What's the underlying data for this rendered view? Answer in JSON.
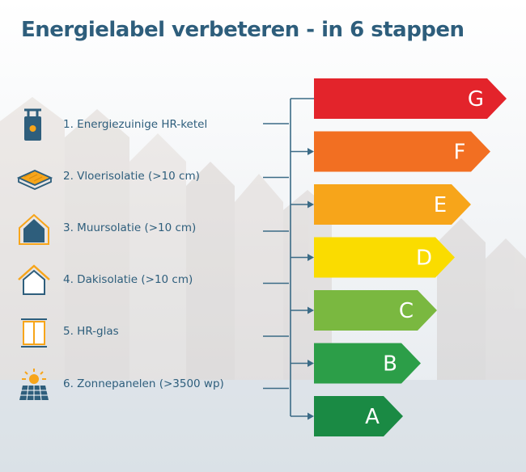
{
  "title": "Energielabel verbeteren - in 6 stappen",
  "steps": [
    {
      "label": "1. Energiezuinige HR-ketel",
      "icon": "boiler-icon"
    },
    {
      "label": "2. Vloerisolatie (>10 cm)",
      "icon": "floor-insulation-icon"
    },
    {
      "label": "3. Muursolatie  (>10 cm)",
      "icon": "house-wall-icon"
    },
    {
      "label": "4. Dakisolatie  (>10 cm)",
      "icon": "house-roof-icon"
    },
    {
      "label": "5. HR-glas",
      "icon": "window-icon"
    },
    {
      "label": "6. Zonnepanelen (>3500 wp)",
      "icon": "solar-panel-icon"
    }
  ],
  "labels": [
    {
      "letter": "G",
      "color": "#e3242b"
    },
    {
      "letter": "F",
      "color": "#f26f22"
    },
    {
      "letter": "E",
      "color": "#f7a51a"
    },
    {
      "letter": "D",
      "color": "#fadc00"
    },
    {
      "letter": "C",
      "color": "#7ab840"
    },
    {
      "letter": "B",
      "color": "#2c9e48"
    },
    {
      "letter": "A",
      "color": "#1a8a44"
    }
  ],
  "colors": {
    "accent": "#2e5e7c",
    "connector": "#3b6b86",
    "icon_orange": "#f7a51a"
  }
}
